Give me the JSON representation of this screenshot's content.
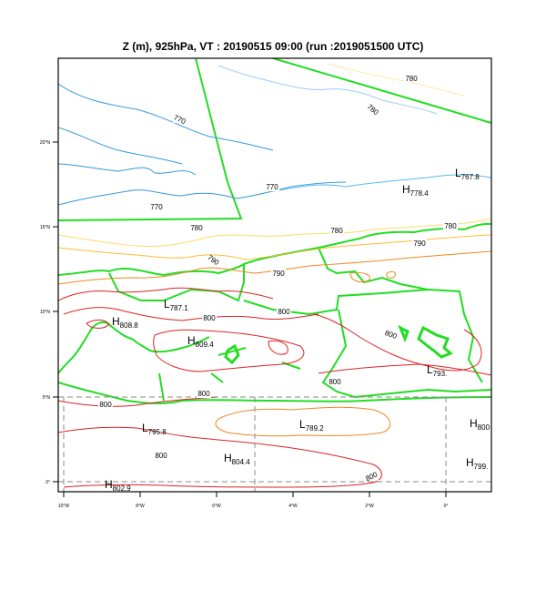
{
  "title": "Z (m), 925hPa, VT : 20190515  09:00 (run :2019051500 UTC)",
  "colors": {
    "frame": "#000000",
    "coast": "#22dd22",
    "c770": "#3399dd",
    "c770b": "#55bbee",
    "c780": "#99ccff",
    "c780y": "#ffdd66",
    "c780o": "#ffbb33",
    "c790": "#ee8822",
    "c800": "#dd2222",
    "grid": "#888888"
  },
  "y_ticks": [
    "20°N",
    "15°N",
    "10°N",
    "5°N",
    "0°"
  ],
  "x_ticks": [
    "10°W",
    "8°W",
    "6°W",
    "4°W",
    "2°W",
    "0°"
  ],
  "contour_labels": [
    "780",
    "780",
    "770",
    "770",
    "770",
    "780",
    "780",
    "790",
    "790",
    "790",
    "780",
    "800",
    "800",
    "800",
    "800",
    "800",
    "800",
    "800",
    "800"
  ],
  "centers": [
    {
      "type": "L",
      "value": "767.8"
    },
    {
      "type": "H",
      "value": "778.4"
    },
    {
      "type": "L",
      "value": "787.1"
    },
    {
      "type": "H",
      "value": "808.8"
    },
    {
      "type": "H",
      "value": "809.4"
    },
    {
      "type": "L",
      "value": "793."
    },
    {
      "type": "L",
      "value": "795.8"
    },
    {
      "type": "L",
      "value": "789.2"
    },
    {
      "type": "H",
      "value": "800"
    },
    {
      "type": "H",
      "value": "804.4"
    },
    {
      "type": "H",
      "value": "799."
    },
    {
      "type": "H",
      "value": "802.9"
    }
  ]
}
